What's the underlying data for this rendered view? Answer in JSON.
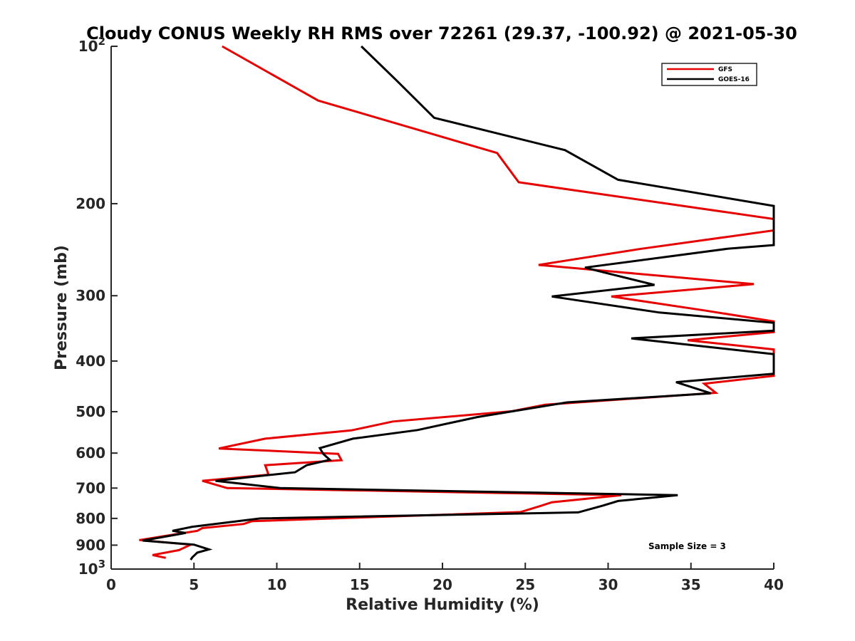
{
  "chart_data": {
    "type": "line",
    "title": "Cloudy CONUS Weekly RH RMS over 72261 (29.37, -100.92) @ 2021-05-30",
    "xlabel": "Relative Humidity (%)",
    "ylabel": "Pressure (mb)",
    "xlim": [
      0,
      40
    ],
    "ylim": [
      100,
      1000
    ],
    "y_scale": "log",
    "y_reversed": true,
    "grid": false,
    "legend_position": "top-right",
    "x_ticks": [
      "0",
      "5",
      "10",
      "15",
      "20",
      "25",
      "30",
      "35",
      "40"
    ],
    "y_ticks": [
      {
        "value": 100,
        "base": "10",
        "exp": "2"
      },
      {
        "value": 200,
        "label": "200"
      },
      {
        "value": 300,
        "label": "300"
      },
      {
        "value": 400,
        "label": "400"
      },
      {
        "value": 500,
        "label": "500"
      },
      {
        "value": 600,
        "label": "600"
      },
      {
        "value": 700,
        "label": "700"
      },
      {
        "value": 800,
        "label": "800"
      },
      {
        "value": 900,
        "label": "900"
      },
      {
        "value": 1000,
        "base": "10",
        "exp": "3"
      }
    ],
    "annotation": "Sample Size = 3",
    "series": [
      {
        "name": "GFS",
        "color": "#e60000",
        "points": [
          [
            6.7,
            100
          ],
          [
            12.5,
            127
          ],
          [
            23.3,
            160
          ],
          [
            24.6,
            182
          ],
          [
            40,
            214
          ],
          [
            40,
            225
          ],
          [
            32,
            244
          ],
          [
            25.8,
            262
          ],
          [
            38.8,
            285
          ],
          [
            30.2,
            301
          ],
          [
            35.8,
            320
          ],
          [
            40,
            336
          ],
          [
            40,
            352
          ],
          [
            34.8,
            365
          ],
          [
            40,
            380
          ],
          [
            40,
            427
          ],
          [
            35.8,
            442
          ],
          [
            36.5,
            460
          ],
          [
            26.2,
            485
          ],
          [
            24.2,
            499
          ],
          [
            17,
            522
          ],
          [
            14.5,
            543
          ],
          [
            9.3,
            563
          ],
          [
            6.5,
            588
          ],
          [
            13.7,
            602
          ],
          [
            13.9,
            619
          ],
          [
            9.3,
            633
          ],
          [
            9.5,
            660
          ],
          [
            5.5,
            678
          ],
          [
            7,
            700
          ],
          [
            30.8,
            722
          ],
          [
            26.6,
            745
          ],
          [
            26,
            756
          ],
          [
            24.7,
            778
          ],
          [
            8.5,
            810
          ],
          [
            8,
            820
          ],
          [
            5.5,
            835
          ],
          [
            5.2,
            845
          ],
          [
            1.7,
            880
          ],
          [
            4.8,
            898
          ],
          [
            4.1,
            920
          ],
          [
            2.5,
            940
          ],
          [
            3.3,
            952
          ]
        ]
      },
      {
        "name": "GOES-16",
        "color": "#000000",
        "points": [
          [
            15.1,
            100
          ],
          [
            17.2,
            116
          ],
          [
            19.5,
            137
          ],
          [
            27.4,
            158
          ],
          [
            30.6,
            180
          ],
          [
            40,
            202
          ],
          [
            40,
            240
          ],
          [
            37.2,
            244
          ],
          [
            28.6,
            265
          ],
          [
            29.8,
            271
          ],
          [
            32.8,
            286
          ],
          [
            26.6,
            301
          ],
          [
            33.1,
            323
          ],
          [
            40,
            338
          ],
          [
            40,
            350
          ],
          [
            31.4,
            362
          ],
          [
            38.4,
            383
          ],
          [
            40,
            388
          ],
          [
            40,
            423
          ],
          [
            34.1,
            439
          ],
          [
            36.2,
            461
          ],
          [
            27.5,
            480
          ],
          [
            22.1,
            512
          ],
          [
            18.5,
            542
          ],
          [
            14.6,
            563
          ],
          [
            12.6,
            587
          ],
          [
            12.8,
            602
          ],
          [
            13.2,
            618
          ],
          [
            11.8,
            633
          ],
          [
            11.1,
            653
          ],
          [
            9.3,
            662
          ],
          [
            6.3,
            678
          ],
          [
            10.2,
            700
          ],
          [
            34.2,
            722
          ],
          [
            30.6,
            741
          ],
          [
            29.7,
            756
          ],
          [
            28.2,
            779
          ],
          [
            9,
            800
          ],
          [
            4.9,
            830
          ],
          [
            3.7,
            845
          ],
          [
            4.5,
            853
          ],
          [
            1.9,
            882
          ],
          [
            5,
            898
          ],
          [
            5.9,
            917
          ],
          [
            5.2,
            930
          ],
          [
            4.9,
            950
          ],
          [
            4.8,
            960
          ]
        ]
      }
    ]
  }
}
